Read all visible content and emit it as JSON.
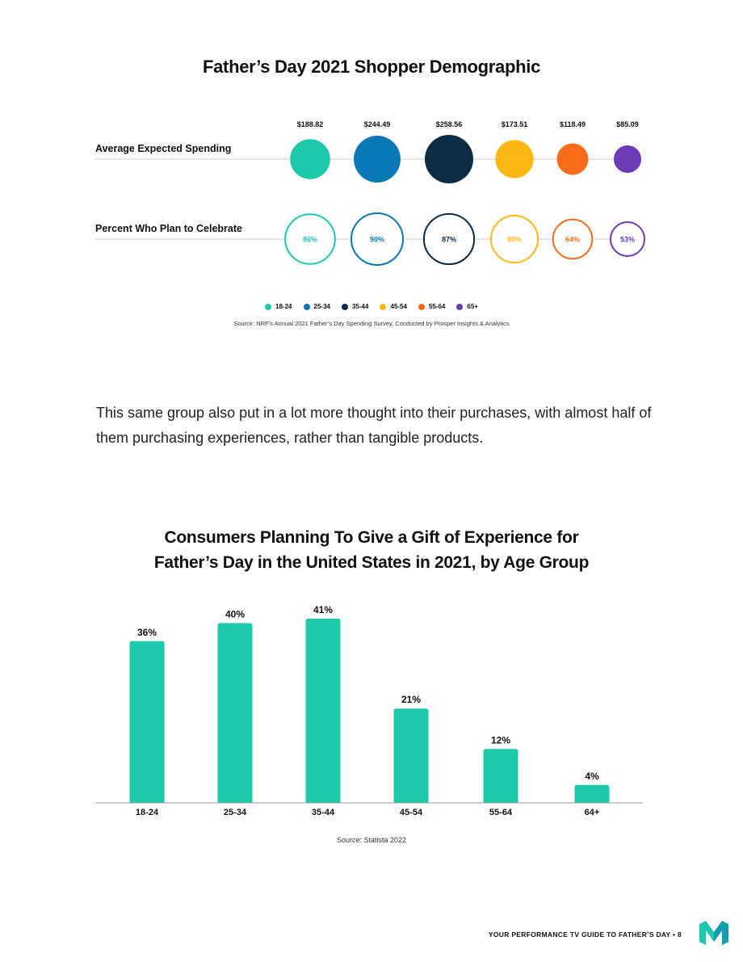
{
  "page": {
    "paragraph": "This same group also put in a lot more thought into their purchases, with almost half of them purchasing experiences, rather than tangible products.",
    "footer": "YOUR PERFORMANCE TV GUIDE TO FATHER’S DAY • 8"
  },
  "chart_data": [
    {
      "type": "bubble",
      "title": "Father’s Day 2021 Shopper Demographic",
      "categories": [
        "18-24",
        "25-34",
        "35-44",
        "45-54",
        "55-64",
        "65+"
      ],
      "colors": [
        "#1dc9ab",
        "#0b78b6",
        "#0e2d45",
        "#fdb813",
        "#f76c1b",
        "#6b3bb8"
      ],
      "series": [
        {
          "name": "Average Expected Spending",
          "labels": [
            "$188.82",
            "$244.49",
            "$258.56",
            "$173.51",
            "$118.49",
            "$85.09"
          ],
          "values": [
            188.82,
            244.49,
            258.56,
            173.51,
            118.49,
            85.09
          ]
        },
        {
          "name": "Percent Who Plan to Celebrate",
          "labels": [
            "86%",
            "90%",
            "87%",
            "80%",
            "64%",
            "53%"
          ],
          "values": [
            86,
            90,
            87,
            80,
            64,
            53
          ]
        }
      ],
      "legend": [
        "18-24",
        "25-34",
        "35-44",
        "45-54",
        "55-64",
        "65+"
      ],
      "legend_placement": "bottom",
      "source": "Source: NRF’s Annual 2021 Father’s Day Spending Survey, Conducted by Prosper Insights & Analytics"
    },
    {
      "type": "bar",
      "title_lines": [
        "Consumers Planning To Give a Gift of Experience for",
        "Father’s Day in the United States in 2021, by Age Group"
      ],
      "categories": [
        "18-24",
        "25-34",
        "35-44",
        "45-54",
        "55-64",
        "64+"
      ],
      "values": [
        36,
        40,
        41,
        21,
        12,
        4
      ],
      "labels": [
        "36%",
        "40%",
        "41%",
        "21%",
        "12%",
        "4%"
      ],
      "color": "#1dc9ab",
      "ylim": [
        0,
        41
      ],
      "grid": false,
      "source": "Source: Statista 2022"
    }
  ]
}
